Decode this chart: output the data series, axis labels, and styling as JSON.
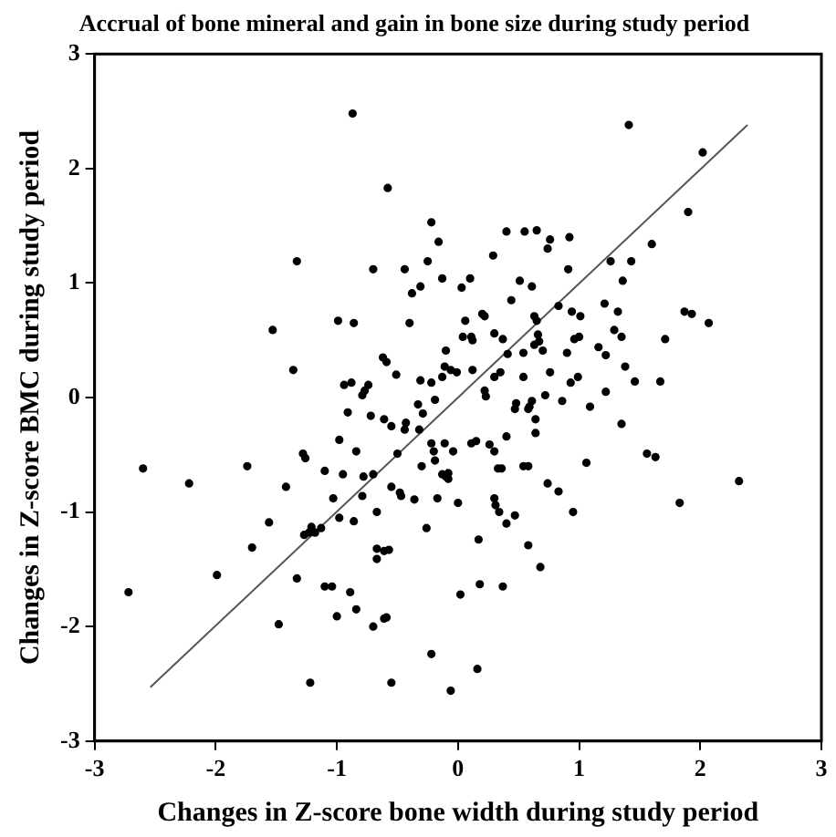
{
  "chart_data": {
    "type": "scatter",
    "title": "Accrual of bone mineral and gain in bone size during study period",
    "xlabel": "Changes in Z-score bone width during study period",
    "ylabel": "Changes in Z-score BMC during study period",
    "xlim": [
      -3,
      3
    ],
    "ylim": [
      -3,
      3
    ],
    "xticks": [
      -3,
      -2,
      -1,
      0,
      1,
      2,
      3
    ],
    "yticks": [
      -3,
      -2,
      -1,
      0,
      1,
      2,
      3
    ],
    "grid": false,
    "legend": false,
    "series": [
      {
        "type": "scatter",
        "marker": "circle",
        "color": "#000000",
        "x": [
          -0.87,
          -0.58,
          -1.33,
          -1.53,
          -1.36,
          -0.99,
          -0.86,
          -0.7,
          -0.44,
          -0.31,
          -0.38,
          -0.25,
          -0.22,
          -0.16,
          -0.13,
          -0.4,
          -0.1,
          -0.62,
          -0.59,
          -0.51,
          -0.94,
          -0.88,
          -0.74,
          -0.77,
          -0.79,
          -0.31,
          -0.22,
          -0.13,
          -0.11,
          1.41,
          2.02,
          1.9,
          1.6,
          0.4,
          0.55,
          0.65,
          0.76,
          0.74,
          0.92,
          0.29,
          0.03,
          0.1,
          0.91,
          1.26,
          1.43,
          1.36,
          0.51,
          0.61,
          0.44,
          0.83,
          0.94,
          1.01,
          1.21,
          1.32,
          1.87,
          1.93,
          2.07,
          0.2,
          0.22,
          0.06,
          0.63,
          0.65,
          0.3,
          0.37,
          0.04,
          0.11,
          0.12,
          0.66,
          0.67,
          0.96,
          1.0,
          1.29,
          1.35,
          1.71,
          0.41,
          0.54,
          0.63,
          0.7,
          0.9,
          1.16,
          1.22,
          1.38,
          -0.06,
          -0.01,
          0.12,
          0.3,
          0.35,
          0.54,
          0.76,
          0.93,
          0.99,
          1.46,
          1.67,
          1.22,
          0.22,
          0.23,
          0.72,
          0.86,
          0.61,
          0.48,
          -2.6,
          -2.22,
          -1.74,
          -1.28,
          -1.26,
          -0.91,
          -0.98,
          -0.72,
          -0.61,
          -0.55,
          -0.43,
          -0.44,
          -0.33,
          -0.29,
          -0.32,
          -0.19,
          -0.84,
          -0.5,
          -1.1,
          -0.95,
          -0.78,
          -0.7,
          -1.42,
          -1.03,
          -0.79,
          -0.55,
          -0.48,
          -0.47,
          -0.36,
          -0.3,
          -0.17,
          -0.22,
          -0.2,
          -0.19,
          -0.13,
          -0.11,
          -1.56,
          -0.98,
          -0.86,
          -0.67,
          -1.27,
          -1.23,
          -1.21,
          -1.18,
          -1.13,
          -0.26,
          -1.7,
          -1.99,
          -2.72,
          -1.33,
          -1.1,
          -1.04,
          -0.89,
          -0.84,
          -0.67,
          -0.67,
          -0.61,
          -0.57,
          -1.48,
          -1.0,
          -0.7,
          -0.61,
          -0.59,
          -0.22,
          -1.22,
          -0.55,
          0.47,
          0.58,
          0.59,
          1.09,
          1.35,
          0.64,
          0.64,
          -0.04,
          0.11,
          0.15,
          0.26,
          0.3,
          0.4,
          -0.1,
          -0.08,
          -0.08,
          0.33,
          0.36,
          0.54,
          0.58,
          1.06,
          1.56,
          1.63,
          2.32,
          0.74,
          0.83,
          0.0,
          0.3,
          0.31,
          0.34,
          0.4,
          0.47,
          0.95,
          1.83,
          0.17,
          0.58,
          0.68,
          0.02,
          0.18,
          0.37,
          0.16,
          -0.06
        ],
        "values": [
          2.48,
          1.83,
          1.19,
          0.59,
          0.24,
          0.67,
          0.65,
          1.12,
          1.12,
          0.97,
          0.91,
          1.19,
          1.53,
          1.36,
          1.04,
          0.65,
          0.41,
          0.35,
          0.31,
          0.2,
          0.11,
          0.13,
          0.11,
          0.06,
          0.02,
          0.15,
          0.13,
          0.18,
          0.27,
          2.38,
          2.14,
          1.62,
          1.34,
          1.45,
          1.45,
          1.46,
          1.38,
          1.3,
          1.4,
          1.24,
          0.96,
          1.04,
          1.12,
          1.19,
          1.19,
          1.02,
          1.02,
          0.97,
          0.85,
          0.8,
          0.75,
          0.71,
          0.82,
          0.75,
          0.75,
          0.73,
          0.65,
          0.73,
          0.71,
          0.67,
          0.71,
          0.67,
          0.56,
          0.51,
          0.53,
          0.53,
          0.5,
          0.55,
          0.49,
          0.51,
          0.53,
          0.59,
          0.53,
          0.51,
          0.38,
          0.39,
          0.46,
          0.41,
          0.39,
          0.44,
          0.37,
          0.27,
          0.24,
          0.22,
          0.24,
          0.18,
          0.22,
          0.18,
          0.22,
          0.13,
          0.18,
          0.14,
          0.14,
          0.05,
          0.06,
          0.01,
          0.02,
          -0.03,
          -0.03,
          -0.05,
          -0.62,
          -0.75,
          -0.6,
          -0.49,
          -0.53,
          -0.13,
          -0.37,
          -0.16,
          -0.19,
          -0.25,
          -0.22,
          -0.28,
          -0.06,
          -0.14,
          -0.28,
          -0.02,
          -0.47,
          -0.49,
          -0.64,
          -0.67,
          -0.69,
          -0.67,
          -0.78,
          -0.88,
          -0.86,
          -0.78,
          -0.83,
          -0.86,
          -0.89,
          -0.6,
          -0.88,
          -0.4,
          -0.47,
          -0.55,
          -0.67,
          -0.4,
          -1.09,
          -1.05,
          -1.08,
          -1.0,
          -1.2,
          -1.18,
          -1.13,
          -1.18,
          -1.14,
          -1.14,
          -1.31,
          -1.55,
          -1.7,
          -1.58,
          -1.65,
          -1.65,
          -1.7,
          -1.85,
          -1.32,
          -1.41,
          -1.34,
          -1.33,
          -1.98,
          -1.91,
          -2.0,
          -1.93,
          -1.92,
          -2.24,
          -2.49,
          -2.49,
          -0.1,
          -0.1,
          -0.08,
          -0.08,
          -0.23,
          -0.19,
          -0.31,
          -0.47,
          -0.4,
          -0.38,
          -0.41,
          -0.47,
          -0.34,
          -0.69,
          -0.66,
          -0.71,
          -0.62,
          -0.62,
          -0.6,
          -0.6,
          -0.57,
          -0.49,
          -0.52,
          -0.73,
          -0.75,
          -0.82,
          -0.92,
          -0.88,
          -0.94,
          -1.0,
          -1.1,
          -1.03,
          -1.0,
          -0.92,
          -1.24,
          -1.29,
          -1.48,
          -1.72,
          -1.63,
          -1.65,
          -2.37,
          -2.56
        ]
      },
      {
        "type": "line",
        "marker": "none",
        "color": "#555555",
        "x": [
          -2.54,
          2.39
        ],
        "values": [
          -2.53,
          2.38
        ]
      }
    ]
  }
}
